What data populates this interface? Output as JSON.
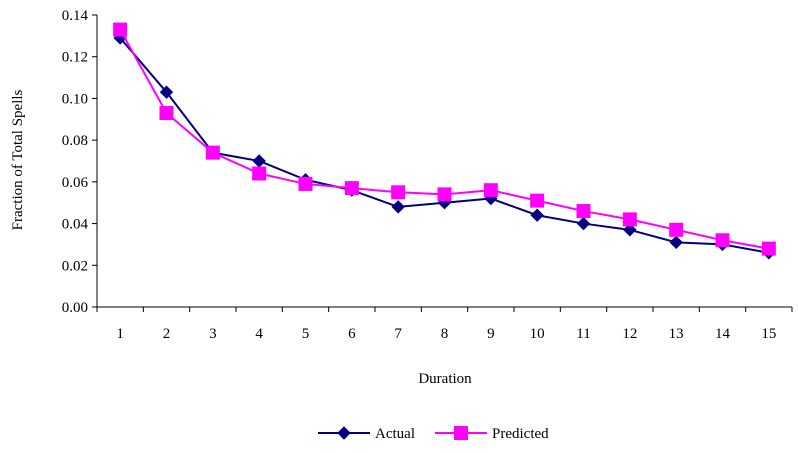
{
  "chart_data": {
    "type": "line",
    "title": "",
    "xlabel": "Duration",
    "ylabel": "Fraction of Total Spells",
    "categories": [
      "1",
      "2",
      "3",
      "4",
      "5",
      "6",
      "7",
      "8",
      "9",
      "10",
      "11",
      "12",
      "13",
      "14",
      "15"
    ],
    "ylim": [
      0,
      0.14
    ],
    "yticks": [
      "0.00",
      "0.02",
      "0.04",
      "0.06",
      "0.08",
      "0.10",
      "0.12",
      "0.14"
    ],
    "grid": false,
    "legend": "bottom",
    "series": [
      {
        "name": "Actual",
        "color": "#000080",
        "marker": "diamond",
        "values": [
          0.129,
          0.103,
          0.074,
          0.07,
          0.061,
          0.056,
          0.048,
          0.05,
          0.052,
          0.044,
          0.04,
          0.037,
          0.031,
          0.03,
          0.026
        ]
      },
      {
        "name": "Predicted",
        "color": "#ff00ff",
        "marker": "square",
        "values": [
          0.133,
          0.093,
          0.074,
          0.064,
          0.059,
          0.057,
          0.055,
          0.054,
          0.056,
          0.051,
          0.046,
          0.042,
          0.037,
          0.032,
          0.028
        ]
      }
    ]
  }
}
